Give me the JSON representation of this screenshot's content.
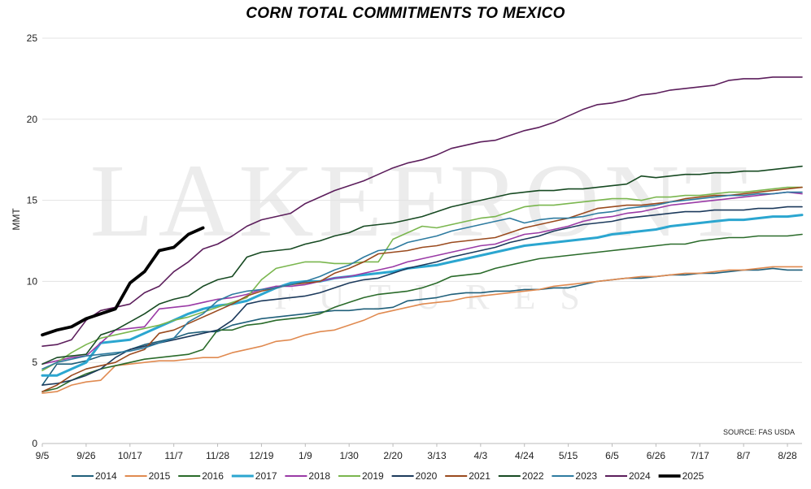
{
  "chart_data": {
    "type": "line",
    "title": "CORN TOTAL COMMITMENTS TO MEXICO",
    "ylabel": "MMT",
    "xlabel": "",
    "ylim": [
      0,
      25
    ],
    "yticks": [
      0,
      5,
      10,
      15,
      20,
      25
    ],
    "xtick_labels": [
      "9/5",
      "9/26",
      "10/17",
      "11/7",
      "11/28",
      "12/19",
      "1/9",
      "1/30",
      "2/20",
      "3/13",
      "4/3",
      "4/24",
      "5/15",
      "6/5",
      "6/26",
      "7/17",
      "8/7",
      "8/28"
    ],
    "x_week_count": 52,
    "source": "SOURCE: FAS USDA",
    "watermark": {
      "main": "LAKEFRONT",
      "sub": "FUTURES"
    },
    "series": [
      {
        "name": "2014",
        "color": "#1f5f7a",
        "width": 1.6,
        "values": [
          3.6,
          4.9,
          4.9,
          5.1,
          5.4,
          5.5,
          5.8,
          6.1,
          6.3,
          6.5,
          6.8,
          6.9,
          6.9,
          7.3,
          7.5,
          7.7,
          7.8,
          7.9,
          8.0,
          8.1,
          8.2,
          8.2,
          8.3,
          8.3,
          8.4,
          8.8,
          8.9,
          9.0,
          9.2,
          9.3,
          9.3,
          9.4,
          9.4,
          9.5,
          9.5,
          9.6,
          9.6,
          9.8,
          10.0,
          10.1,
          10.2,
          10.2,
          10.3,
          10.4,
          10.4,
          10.5,
          10.5,
          10.6,
          10.7,
          10.7,
          10.8,
          10.7,
          10.7
        ]
      },
      {
        "name": "2015",
        "color": "#e08a50",
        "width": 1.6,
        "values": [
          3.1,
          3.2,
          3.6,
          3.8,
          3.9,
          4.8,
          4.9,
          5.0,
          5.1,
          5.1,
          5.2,
          5.3,
          5.3,
          5.6,
          5.8,
          6.0,
          6.3,
          6.4,
          6.7,
          6.9,
          7.0,
          7.3,
          7.6,
          8.0,
          8.2,
          8.4,
          8.6,
          8.7,
          8.8,
          9.0,
          9.1,
          9.2,
          9.3,
          9.4,
          9.5,
          9.7,
          9.8,
          9.9,
          10.0,
          10.1,
          10.2,
          10.3,
          10.3,
          10.4,
          10.5,
          10.5,
          10.6,
          10.7,
          10.7,
          10.8,
          10.9,
          10.9,
          10.9
        ]
      },
      {
        "name": "2016",
        "color": "#2a6b2a",
        "width": 1.6,
        "values": [
          3.2,
          3.4,
          3.9,
          4.3,
          4.6,
          4.8,
          5.0,
          5.2,
          5.3,
          5.4,
          5.5,
          5.8,
          7.0,
          7.0,
          7.3,
          7.4,
          7.6,
          7.7,
          7.8,
          8.0,
          8.4,
          8.7,
          9.0,
          9.2,
          9.3,
          9.4,
          9.6,
          9.9,
          10.3,
          10.4,
          10.5,
          10.8,
          11.0,
          11.2,
          11.4,
          11.5,
          11.6,
          11.7,
          11.8,
          11.9,
          12.0,
          12.1,
          12.2,
          12.3,
          12.3,
          12.5,
          12.6,
          12.7,
          12.7,
          12.8,
          12.8,
          12.8,
          12.9
        ]
      },
      {
        "name": "2017",
        "color": "#2ba6d0",
        "width": 3.0,
        "values": [
          4.2,
          4.2,
          4.6,
          5.0,
          6.2,
          6.3,
          6.4,
          6.8,
          7.2,
          7.6,
          8.0,
          8.3,
          8.5,
          8.6,
          8.8,
          9.2,
          9.6,
          9.9,
          10.0,
          10.0,
          10.2,
          10.3,
          10.4,
          10.5,
          10.6,
          10.8,
          10.9,
          11.0,
          11.2,
          11.4,
          11.6,
          11.8,
          12.0,
          12.2,
          12.3,
          12.4,
          12.5,
          12.6,
          12.7,
          12.9,
          13.0,
          13.1,
          13.2,
          13.4,
          13.5,
          13.6,
          13.7,
          13.8,
          13.8,
          13.9,
          14.0,
          14.0,
          14.1
        ]
      },
      {
        "name": "2018",
        "color": "#9a3aa6",
        "width": 1.6,
        "values": [
          4.9,
          5.1,
          5.3,
          5.4,
          6.2,
          7.0,
          7.1,
          7.2,
          8.3,
          8.4,
          8.5,
          8.7,
          8.9,
          9.0,
          9.2,
          9.5,
          9.7,
          9.7,
          9.8,
          10.0,
          10.2,
          10.3,
          10.5,
          10.7,
          10.9,
          11.2,
          11.4,
          11.6,
          11.8,
          12.0,
          12.2,
          12.3,
          12.6,
          12.9,
          13.0,
          13.2,
          13.4,
          13.7,
          13.9,
          14.0,
          14.2,
          14.3,
          14.5,
          14.7,
          14.8,
          14.9,
          15.0,
          15.1,
          15.2,
          15.3,
          15.4,
          15.5,
          15.4
        ]
      },
      {
        "name": "2019",
        "color": "#7ab64e",
        "width": 1.6,
        "values": [
          4.5,
          5.0,
          5.6,
          6.1,
          6.5,
          6.7,
          6.9,
          7.1,
          7.3,
          7.6,
          7.8,
          8.1,
          8.4,
          8.7,
          9.0,
          10.1,
          10.8,
          11.0,
          11.2,
          11.2,
          11.1,
          11.1,
          11.2,
          11.2,
          12.6,
          13.0,
          13.4,
          13.3,
          13.5,
          13.7,
          13.9,
          14.0,
          14.3,
          14.6,
          14.7,
          14.7,
          14.8,
          14.9,
          15.0,
          15.1,
          15.1,
          15.0,
          15.2,
          15.2,
          15.3,
          15.3,
          15.4,
          15.5,
          15.5,
          15.6,
          15.7,
          15.8,
          15.8
        ]
      },
      {
        "name": "2020",
        "color": "#1c3a5c",
        "width": 1.6,
        "values": [
          3.6,
          3.7,
          3.9,
          4.2,
          4.6,
          5.3,
          5.8,
          6.0,
          6.2,
          6.4,
          6.6,
          6.8,
          7.0,
          7.6,
          8.6,
          8.8,
          8.9,
          9.0,
          9.1,
          9.3,
          9.6,
          9.9,
          10.1,
          10.2,
          10.5,
          10.8,
          11.0,
          11.2,
          11.5,
          11.7,
          11.9,
          12.1,
          12.4,
          12.6,
          12.8,
          13.1,
          13.3,
          13.5,
          13.6,
          13.7,
          13.9,
          14.0,
          14.1,
          14.2,
          14.3,
          14.3,
          14.4,
          14.4,
          14.4,
          14.5,
          14.5,
          14.6,
          14.6
        ]
      },
      {
        "name": "2021",
        "color": "#9a4a1e",
        "width": 1.6,
        "values": [
          3.2,
          3.6,
          4.2,
          4.6,
          4.8,
          5.0,
          5.5,
          5.8,
          6.8,
          7.0,
          7.4,
          7.8,
          8.2,
          8.6,
          9.1,
          9.4,
          9.6,
          9.8,
          9.9,
          10.0,
          10.5,
          10.8,
          11.2,
          11.7,
          11.8,
          11.9,
          12.1,
          12.2,
          12.4,
          12.5,
          12.6,
          12.7,
          13.0,
          13.3,
          13.5,
          13.7,
          13.9,
          14.2,
          14.5,
          14.6,
          14.7,
          14.7,
          14.8,
          14.9,
          15.1,
          15.2,
          15.3,
          15.3,
          15.4,
          15.5,
          15.6,
          15.7,
          15.8
        ]
      },
      {
        "name": "2022",
        "color": "#174a22",
        "width": 1.6,
        "values": [
          4.9,
          5.3,
          5.4,
          5.5,
          6.7,
          7.0,
          7.5,
          8.0,
          8.6,
          8.9,
          9.1,
          9.7,
          10.1,
          10.3,
          11.5,
          11.8,
          11.9,
          12.0,
          12.3,
          12.5,
          12.8,
          13.0,
          13.4,
          13.5,
          13.6,
          13.8,
          14.0,
          14.3,
          14.6,
          14.8,
          15.0,
          15.2,
          15.4,
          15.5,
          15.6,
          15.6,
          15.7,
          15.7,
          15.8,
          15.9,
          16.0,
          16.5,
          16.4,
          16.5,
          16.6,
          16.6,
          16.7,
          16.7,
          16.8,
          16.8,
          16.9,
          17.0,
          17.1
        ]
      },
      {
        "name": "2023",
        "color": "#2e7ba0",
        "width": 1.6,
        "values": [
          4.6,
          5.0,
          5.2,
          5.4,
          5.5,
          5.6,
          5.7,
          5.9,
          6.2,
          6.5,
          7.5,
          8.0,
          8.8,
          9.2,
          9.4,
          9.5,
          9.6,
          9.8,
          10.0,
          10.3,
          10.7,
          11.0,
          11.5,
          11.9,
          12.0,
          12.4,
          12.6,
          12.8,
          13.1,
          13.3,
          13.5,
          13.7,
          13.9,
          13.6,
          13.8,
          13.9,
          13.9,
          14.0,
          14.2,
          14.3,
          14.5,
          14.6,
          14.7,
          14.9,
          15.0,
          15.1,
          15.2,
          15.3,
          15.3,
          15.4,
          15.4,
          15.5,
          15.5
        ]
      },
      {
        "name": "2024",
        "color": "#5c1e5c",
        "width": 1.6,
        "values": [
          6.0,
          6.1,
          6.4,
          7.6,
          8.2,
          8.4,
          8.6,
          9.3,
          9.7,
          10.6,
          11.2,
          12.0,
          12.3,
          12.8,
          13.4,
          13.8,
          14.0,
          14.2,
          14.8,
          15.2,
          15.6,
          15.9,
          16.2,
          16.6,
          17.0,
          17.3,
          17.5,
          17.8,
          18.2,
          18.4,
          18.6,
          18.7,
          19.0,
          19.3,
          19.5,
          19.8,
          20.2,
          20.6,
          20.9,
          21.0,
          21.2,
          21.5,
          21.6,
          21.8,
          21.9,
          22.0,
          22.1,
          22.4,
          22.5,
          22.5,
          22.6,
          22.6,
          22.6
        ]
      },
      {
        "name": "2025",
        "color": "#000000",
        "width": 3.8,
        "values": [
          6.7,
          7.0,
          7.2,
          7.7,
          8.0,
          8.3,
          9.9,
          10.6,
          11.9,
          12.1,
          12.9,
          13.3
        ]
      }
    ]
  }
}
